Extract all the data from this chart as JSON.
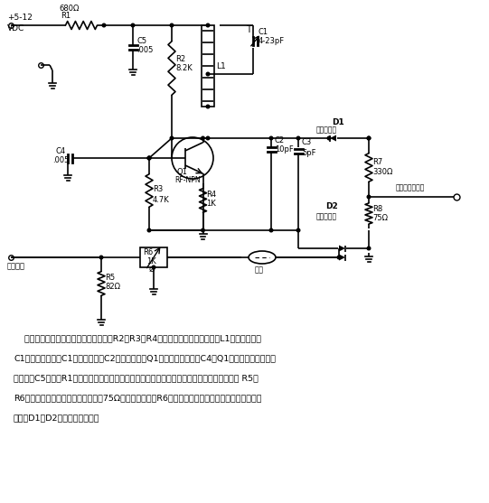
{
  "bg_color": "#ffffff",
  "line_color": "#000000",
  "text_color": "#000000",
  "description_lines": [
    "    其高频信号由一个哈特莱振荡器产生。R2、R3和R4偏置晶体管，带抽头的电感L1和微调电容器",
    "C1构成振路，调节C1即改变频率。C2提供由振路到Q1发射极的正反馈。C4使Q1的基极交流接地。旁",
    "路电容器C5和电阻R1滤除由振路产生的射频，以防止电源线产生辐射。视频信号进入并联电阻 R5和",
    "R6。该并联电阻与大多数视频电缆的75Ω阻抗严格匹配；R6为一小型可调电阻，用来控制输入给视频",
    "二极管D1和D2的视频信号电平。"
  ]
}
